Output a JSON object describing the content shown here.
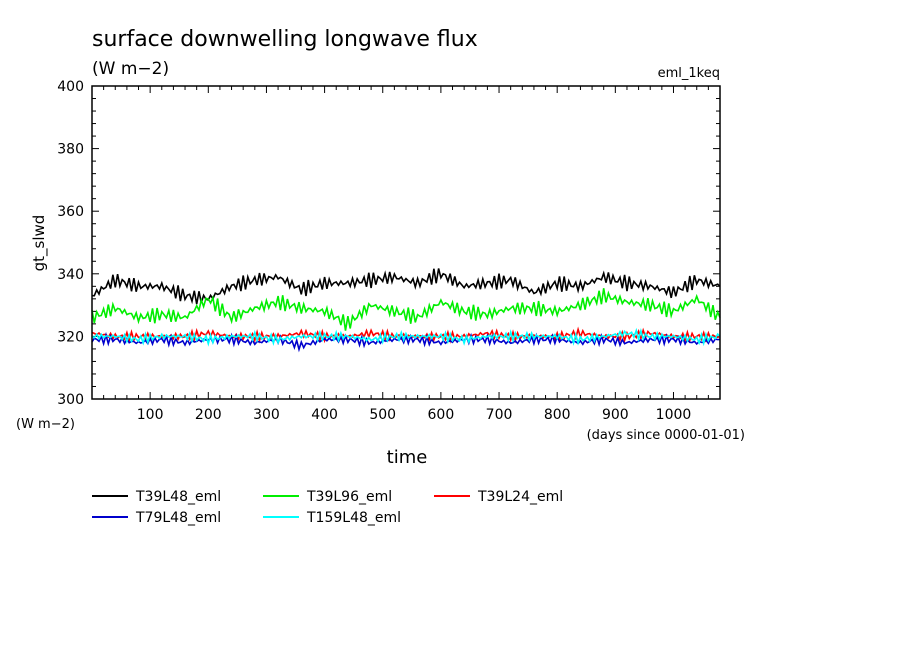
{
  "chart_data": {
    "type": "line",
    "title": "surface downwelling longwave flux",
    "units": "(W m−2)",
    "experiment": "eml_1keq",
    "ylabel": "gt_slwd",
    "ylabel_units": "(W m−2)",
    "xlabel": "time",
    "xlabel_units": "(days since 0000-01-01)",
    "xlim": [
      0,
      1080
    ],
    "ylim": [
      300,
      400
    ],
    "xticks": [
      100,
      200,
      300,
      400,
      500,
      600,
      700,
      800,
      900,
      1000
    ],
    "yticks": [
      300,
      320,
      340,
      360,
      380,
      400
    ],
    "legend_position": "below",
    "series": [
      {
        "name": "T39L48_eml",
        "color": "#000000",
        "x": [
          0,
          40,
          80,
          120,
          160,
          200,
          240,
          280,
          320,
          360,
          400,
          440,
          480,
          520,
          560,
          600,
          640,
          680,
          720,
          760,
          800,
          840,
          880,
          920,
          960,
          1000,
          1040,
          1080
        ],
        "values": [
          333,
          338,
          336,
          336,
          333,
          332,
          336,
          338,
          339,
          335,
          337,
          337,
          338,
          339,
          337,
          340,
          336,
          337,
          338,
          334,
          337,
          336,
          339,
          337,
          336,
          334,
          338,
          336
        ]
      },
      {
        "name": "T39L96_eml",
        "color": "#00ee00",
        "x": [
          0,
          40,
          80,
          120,
          160,
          200,
          240,
          280,
          320,
          360,
          400,
          440,
          480,
          520,
          560,
          600,
          640,
          680,
          720,
          760,
          800,
          840,
          880,
          920,
          960,
          1000,
          1040,
          1080
        ],
        "values": [
          326,
          329,
          326,
          327,
          326,
          332,
          326,
          329,
          331,
          329,
          328,
          324,
          330,
          328,
          326,
          331,
          328,
          327,
          329,
          329,
          328,
          330,
          333,
          331,
          330,
          328,
          332,
          326
        ]
      },
      {
        "name": "T39L24_eml",
        "color": "#ff0000",
        "x": [
          0,
          40,
          80,
          120,
          160,
          200,
          240,
          280,
          320,
          360,
          400,
          440,
          480,
          520,
          560,
          600,
          640,
          680,
          720,
          760,
          800,
          840,
          880,
          920,
          960,
          1000,
          1040,
          1080
        ],
        "values": [
          321,
          320,
          320,
          320,
          320,
          321,
          320,
          320,
          320,
          321,
          320,
          320,
          321,
          320,
          320,
          320,
          320,
          321,
          320,
          320,
          320,
          321,
          320,
          320,
          321,
          320,
          320,
          320
        ]
      },
      {
        "name": "T79L48_eml",
        "color": "#0000cc",
        "x": [
          0,
          40,
          80,
          120,
          160,
          200,
          240,
          280,
          320,
          360,
          400,
          440,
          480,
          520,
          560,
          600,
          640,
          680,
          720,
          760,
          800,
          840,
          880,
          920,
          960,
          1000,
          1040,
          1080
        ],
        "values": [
          319,
          319,
          318,
          319,
          318,
          319,
          319,
          318,
          319,
          317,
          319,
          319,
          318,
          319,
          319,
          318,
          319,
          319,
          318,
          319,
          319,
          318,
          319,
          318,
          319,
          319,
          318,
          319
        ]
      },
      {
        "name": "T159L48_eml",
        "color": "#00ffff",
        "x": [
          0,
          40,
          80,
          120,
          160,
          200,
          240,
          280,
          320,
          360,
          400,
          440,
          480,
          520,
          560,
          600,
          640,
          680,
          720,
          760,
          800,
          840,
          880,
          920,
          960,
          1000,
          1040,
          1080
        ],
        "values": [
          320,
          320,
          319,
          320,
          320,
          319,
          320,
          320,
          319,
          320,
          320,
          320,
          319,
          320,
          320,
          320,
          319,
          320,
          320,
          320,
          320,
          319,
          320,
          321,
          320,
          320,
          319,
          320
        ]
      }
    ]
  }
}
